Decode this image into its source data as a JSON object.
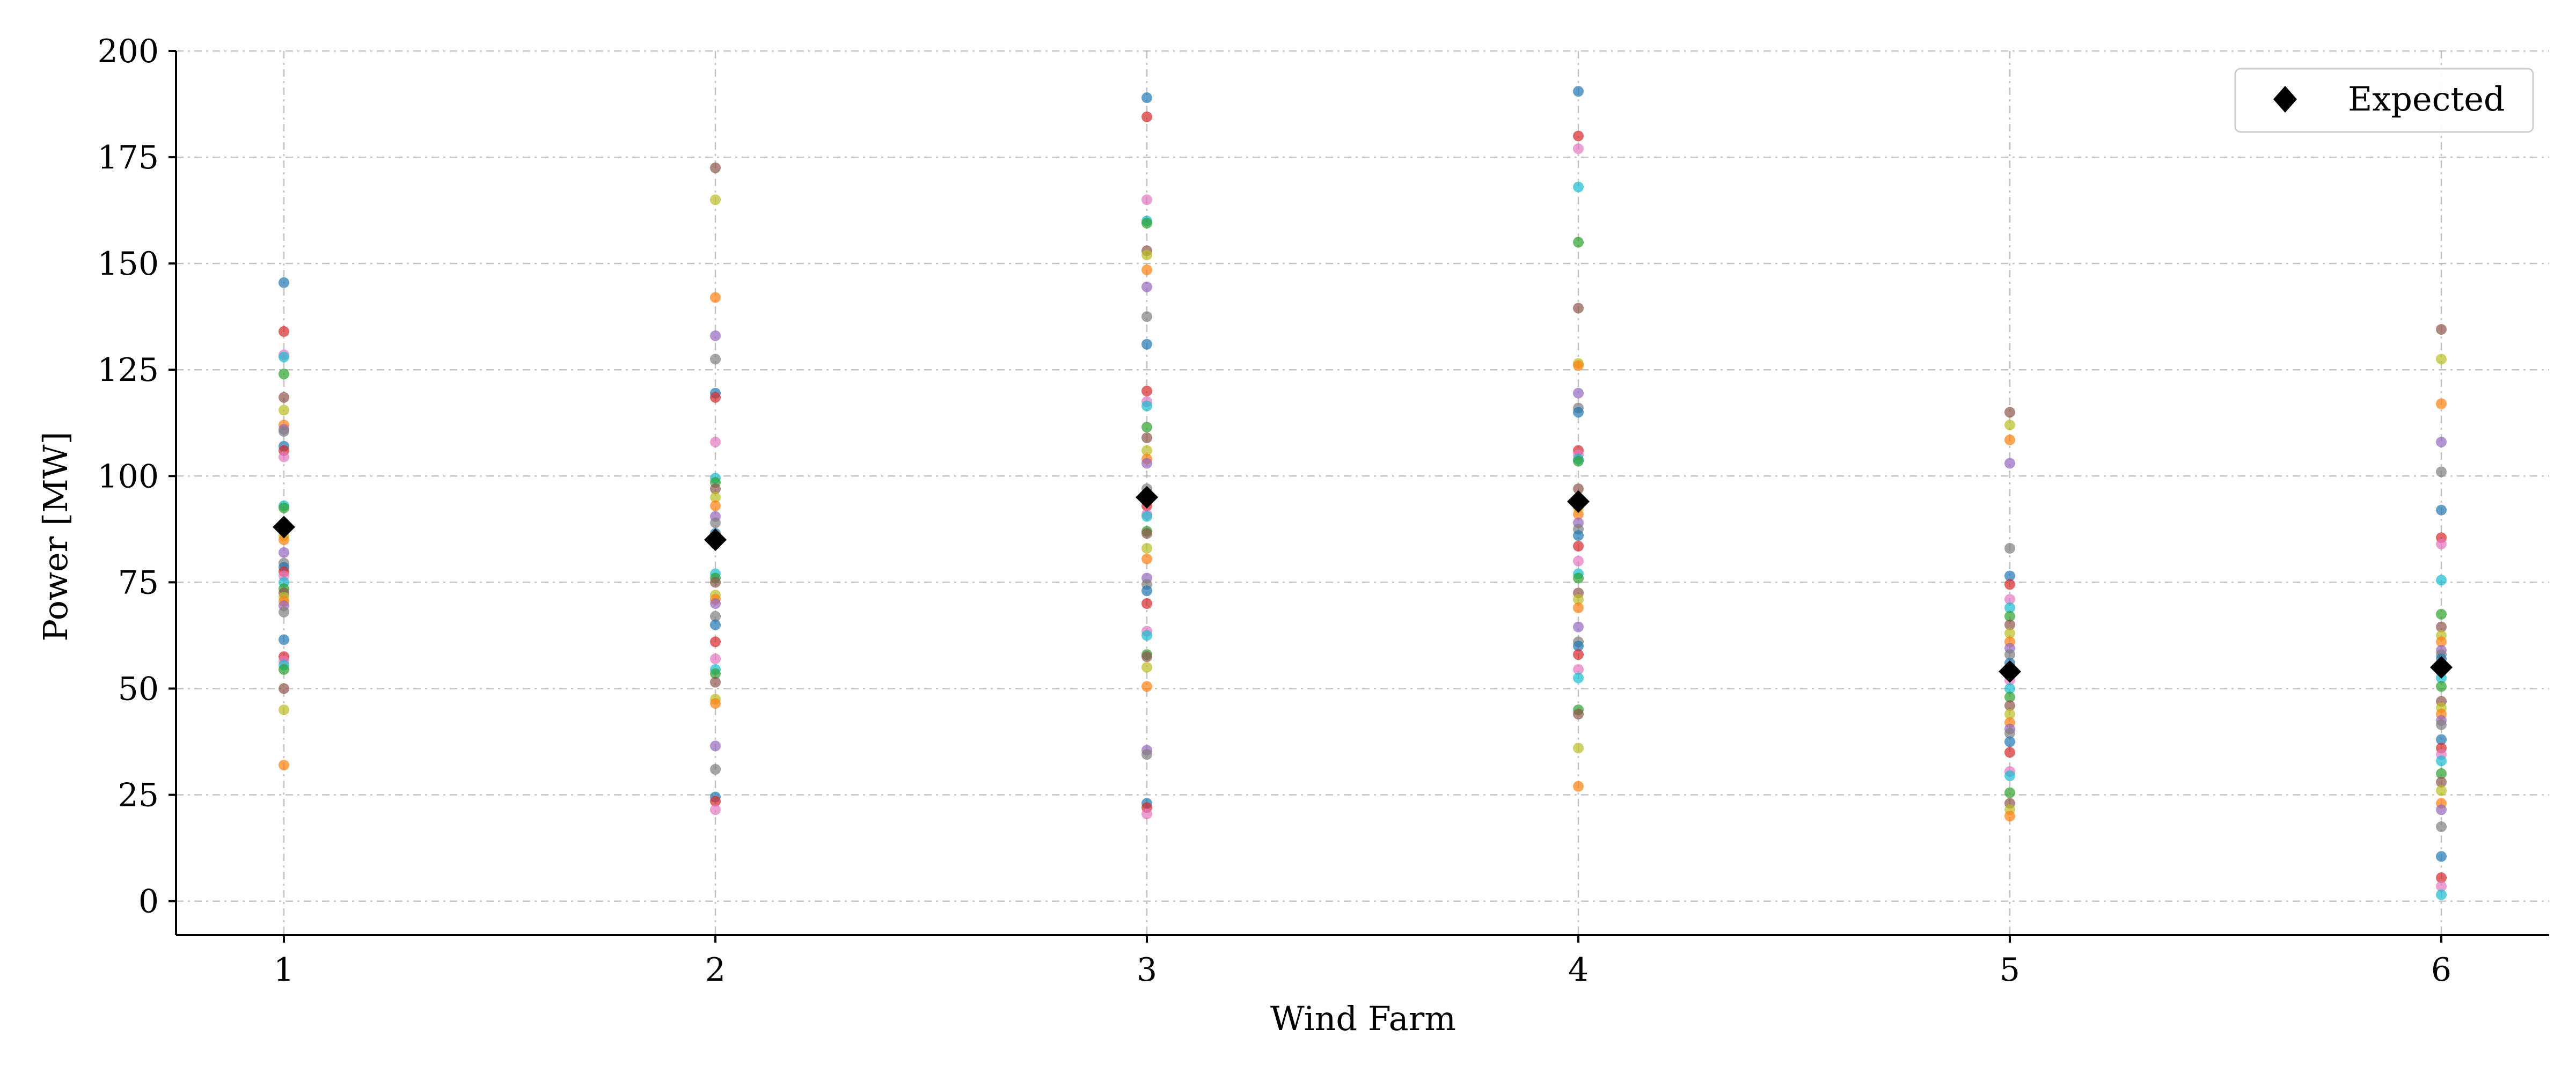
{
  "chart_data": {
    "type": "scatter",
    "xlabel": "Wind Farm",
    "ylabel": "Power [MW]",
    "x_ticks": [
      1,
      2,
      3,
      4,
      5,
      6
    ],
    "y_ticks": [
      0,
      25,
      50,
      75,
      100,
      125,
      150,
      175,
      200
    ],
    "xlim": [
      0.75,
      6.25
    ],
    "ylim": [
      -8,
      200
    ],
    "grid": true,
    "legend": {
      "placement": "top-right",
      "entries": [
        {
          "label": "Expected",
          "marker": "diamond",
          "color": "#000000"
        }
      ]
    },
    "expected": {
      "name": "Expected",
      "x": [
        1,
        2,
        3,
        4,
        5,
        6
      ],
      "y": [
        88,
        85,
        95,
        94,
        54,
        55
      ]
    },
    "observations": [
      {
        "x": 1,
        "values": [
          145.5,
          134,
          128.5,
          128,
          124,
          118.5,
          115.5,
          112,
          111,
          110.5,
          107,
          106,
          104.5,
          93,
          92.5,
          87.5,
          86,
          85,
          82,
          79.5,
          78.5,
          77.5,
          76.5,
          75,
          73.5,
          72.5,
          71.5,
          70.5,
          69.5,
          68,
          61.5,
          57.5,
          56.5,
          55.5,
          54.5,
          50,
          45,
          32
        ]
      },
      {
        "x": 2,
        "values": [
          172.5,
          165,
          142,
          133,
          127.5,
          119.5,
          118.5,
          108,
          99.5,
          98.5,
          97,
          95,
          93,
          90.5,
          89,
          86.5,
          85,
          84,
          77,
          76,
          75,
          72,
          71,
          70,
          67,
          65,
          61,
          57,
          54.5,
          53.5,
          51.5,
          47.5,
          46.5,
          36.5,
          31,
          24.5,
          23.5,
          21.5
        ]
      },
      {
        "x": 3,
        "values": [
          189,
          184.5,
          165,
          160,
          159.5,
          153,
          152,
          148.5,
          144.5,
          137.5,
          131,
          120,
          117.5,
          116.5,
          111.5,
          109,
          106,
          104,
          103,
          97,
          96,
          93,
          91,
          90.5,
          87,
          86.5,
          83,
          80.5,
          76,
          74.5,
          73,
          70,
          63.5,
          62.5,
          58,
          57.5,
          55,
          50.5,
          35.5,
          34.5,
          23,
          22,
          20.5
        ]
      },
      {
        "x": 4,
        "values": [
          190.5,
          180,
          177,
          168,
          155,
          139.5,
          126.5,
          126,
          119.5,
          116,
          115,
          106,
          105,
          104,
          103.5,
          97,
          92.5,
          91,
          89,
          87.5,
          86,
          83.5,
          80,
          77,
          76,
          72.5,
          71,
          69,
          64.5,
          61,
          60,
          58,
          54.5,
          52.5,
          45,
          44,
          36,
          27
        ]
      },
      {
        "x": 5,
        "values": [
          115,
          112,
          108.5,
          103,
          83,
          76.5,
          74.5,
          71,
          69,
          67,
          65,
          63,
          61,
          59.5,
          58,
          56,
          55,
          52,
          50,
          48,
          46,
          44,
          42,
          40.5,
          39.5,
          37.5,
          35,
          30.5,
          29.5,
          25.5,
          23,
          21.5,
          20
        ]
      },
      {
        "x": 6,
        "values": [
          134.5,
          127.5,
          117,
          108,
          101,
          92,
          85.5,
          84,
          75.5,
          67.5,
          64.5,
          62.5,
          61,
          59,
          58,
          57,
          55.5,
          54,
          52.5,
          50.5,
          47,
          45.5,
          44,
          42.5,
          41.5,
          38,
          36,
          34.5,
          33,
          30,
          28,
          26,
          23,
          21.5,
          17.5,
          10.5,
          5.5,
          3.5,
          1.5
        ]
      }
    ]
  },
  "colors": {
    "expected": "#000000",
    "axis": "#000000",
    "grid": "#b0b0b0",
    "palette": [
      "#1f77b4",
      "#ff7f0e",
      "#2ca02c",
      "#d62728",
      "#9467bd",
      "#8c564b",
      "#e377c2",
      "#7f7f7f",
      "#bcbd22",
      "#17becf"
    ]
  }
}
